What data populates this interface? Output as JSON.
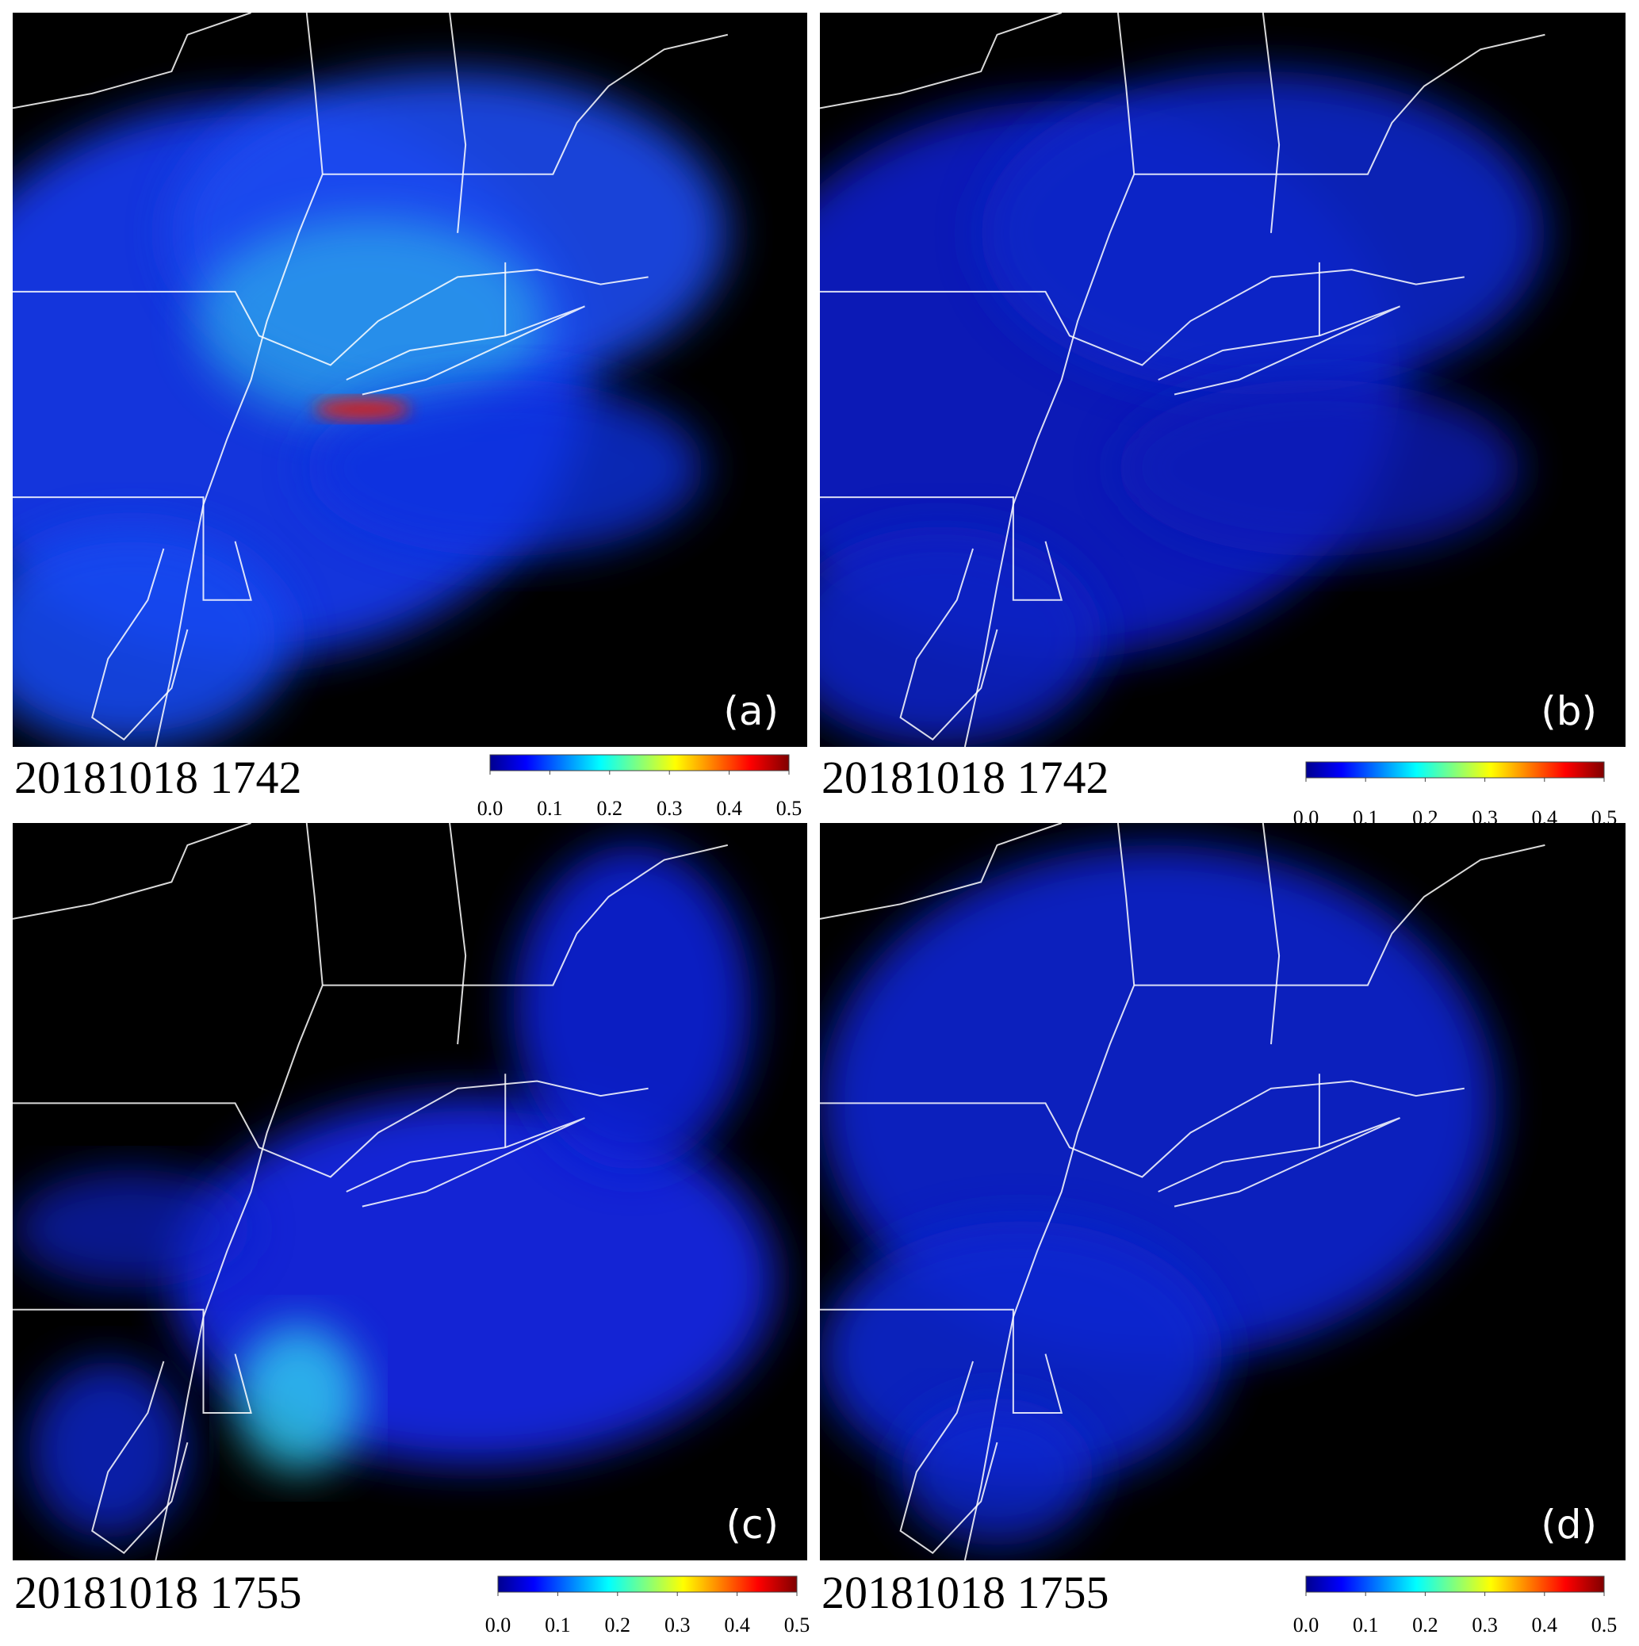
{
  "panels": [
    {
      "label": "(a)",
      "timestamp": "20181018 1742",
      "colorbar": {
        "range": [
          0,
          0.5
        ],
        "ticks": [
          {
            "value": 0,
            "label": "0.0"
          },
          {
            "value": 0.1,
            "label": "0.1"
          },
          {
            "value": 0.2,
            "label": "0.2"
          },
          {
            "value": 0.3,
            "label": "0.3"
          },
          {
            "value": 0.4,
            "label": "0.4"
          },
          {
            "value": 0.5,
            "label": "0.5"
          }
        ]
      }
    },
    {
      "label": "(b)",
      "timestamp": "20181018 1742",
      "colorbar": {
        "range": [
          0,
          0.5
        ],
        "ticks": [
          {
            "value": 0,
            "label": "0.0"
          },
          {
            "value": 0.1,
            "label": "0.1"
          },
          {
            "value": 0.2,
            "label": "0.2"
          },
          {
            "value": 0.3,
            "label": "0.3"
          },
          {
            "value": 0.4,
            "label": "0.4"
          },
          {
            "value": 0.5,
            "label": "0.5"
          }
        ]
      }
    },
    {
      "label": "(c)",
      "timestamp": "20181018 1755",
      "colorbar": {
        "range": [
          0,
          0.5
        ],
        "ticks": [
          {
            "value": 0,
            "label": "0.0"
          },
          {
            "value": 0.1,
            "label": "0.1"
          },
          {
            "value": 0.2,
            "label": "0.2"
          },
          {
            "value": 0.3,
            "label": "0.3"
          },
          {
            "value": 0.4,
            "label": "0.4"
          },
          {
            "value": 0.5,
            "label": "0.5"
          }
        ]
      }
    },
    {
      "label": "(d)",
      "timestamp": "20181018 1755",
      "colorbar": {
        "range": [
          0,
          0.5
        ],
        "ticks": [
          {
            "value": 0,
            "label": "0.0"
          },
          {
            "value": 0.1,
            "label": "0.1"
          },
          {
            "value": 0.2,
            "label": "0.2"
          },
          {
            "value": 0.3,
            "label": "0.3"
          },
          {
            "value": 0.4,
            "label": "0.4"
          },
          {
            "value": 0.5,
            "label": "0.5"
          }
        ]
      }
    }
  ]
}
